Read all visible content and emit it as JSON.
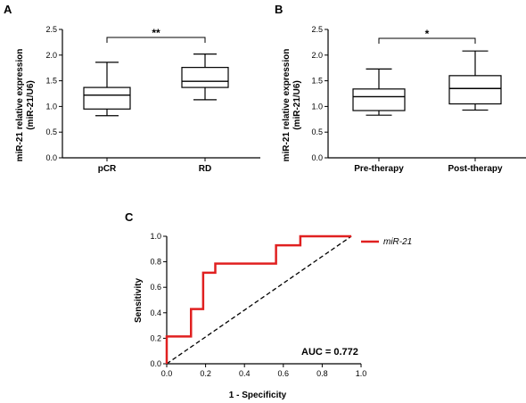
{
  "chart_data": [
    {
      "panel": "A",
      "type": "box",
      "ylabel_line1": "miR-21 relative expression",
      "ylabel_line2": "(miR-21/U6)",
      "ylim": [
        0,
        2.5
      ],
      "yticks": [
        "0.0",
        "0.5",
        "1.0",
        "1.5",
        "2.0",
        "2.5"
      ],
      "categories": [
        "pCR",
        "RD"
      ],
      "boxes": [
        {
          "min": 0.82,
          "q1": 0.95,
          "median": 1.22,
          "q3": 1.37,
          "max": 1.86
        },
        {
          "min": 1.13,
          "q1": 1.37,
          "median": 1.49,
          "q3": 1.76,
          "max": 2.02
        }
      ],
      "significance": "**"
    },
    {
      "panel": "B",
      "type": "box",
      "ylabel_line1": "miR-21 relative expression",
      "ylabel_line2": "(miR-21/U6)",
      "ylim": [
        0,
        2.5
      ],
      "yticks": [
        "0.0",
        "0.5",
        "1.0",
        "1.5",
        "2.0",
        "2.5"
      ],
      "categories": [
        "Pre-therapy",
        "Post-therapy"
      ],
      "boxes": [
        {
          "min": 0.83,
          "q1": 0.92,
          "median": 1.19,
          "q3": 1.34,
          "max": 1.73
        },
        {
          "min": 0.93,
          "q1": 1.05,
          "median": 1.35,
          "q3": 1.6,
          "max": 2.08
        }
      ],
      "significance": "*"
    },
    {
      "panel": "C",
      "type": "line",
      "xlabel": "1 - Specificity",
      "ylabel": "Sensitivity",
      "xlim": [
        0,
        1.0
      ],
      "ylim": [
        0,
        1.0
      ],
      "xticks": [
        "0.0",
        "0.2",
        "0.4",
        "0.6",
        "0.8",
        "1.0"
      ],
      "yticks": [
        "0.0",
        "0.2",
        "0.4",
        "0.6",
        "0.8",
        "1.0"
      ],
      "series": [
        {
          "name": "miR-21",
          "color": "#e02020",
          "x": [
            0.0,
            0.0,
            0.125,
            0.125,
            0.1875,
            0.1875,
            0.25,
            0.25,
            0.5625,
            0.5625,
            0.6875,
            0.6875,
            0.95
          ],
          "y": [
            0.0,
            0.214,
            0.214,
            0.429,
            0.429,
            0.714,
            0.714,
            0.786,
            0.786,
            0.929,
            0.929,
            1.0,
            1.0
          ]
        }
      ],
      "reference_line": {
        "x": [
          0.0,
          0.95
        ],
        "y": [
          0.0,
          1.0
        ],
        "style": "dashed"
      },
      "annotation": "AUC = 0.772"
    }
  ]
}
